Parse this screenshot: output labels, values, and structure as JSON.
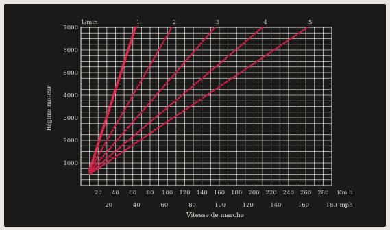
{
  "chart_data": {
    "type": "line",
    "title": "",
    "ylabel": "Régime moteur",
    "ylabel_unit": "1/min",
    "xlabel": "Vitesse de marche",
    "x_unit_top": "Km h",
    "x_unit_bottom": "mph",
    "ylim": [
      0,
      7000
    ],
    "xlim_kmh": [
      0,
      290
    ],
    "y_ticks": [
      "1000",
      "2000",
      "3000",
      "4000",
      "5000",
      "6000",
      "7000"
    ],
    "x_ticks_kmh": [
      "20",
      "40",
      "60",
      "80",
      "100",
      "120",
      "140",
      "160",
      "180",
      "200",
      "220",
      "240",
      "260",
      "280"
    ],
    "x_ticks_mph": [
      "20",
      "40",
      "60",
      "80",
      "100",
      "120",
      "140",
      "160",
      "180"
    ],
    "series": [
      {
        "name": "1",
        "color": "#e0284a",
        "x": [
          10,
          63
        ],
        "y": [
          650,
          7000
        ]
      },
      {
        "name": "2",
        "color": "#c81e44",
        "x": [
          10,
          105
        ],
        "y": [
          650,
          7000
        ]
      },
      {
        "name": "3",
        "color": "#c81e44",
        "x": [
          10,
          155
        ],
        "y": [
          600,
          7000
        ]
      },
      {
        "name": "4",
        "color": "#c81e44",
        "x": [
          10,
          210
        ],
        "y": [
          550,
          7000
        ]
      },
      {
        "name": "5",
        "color": "#c81e44",
        "x": [
          10,
          262
        ],
        "y": [
          500,
          7000
        ]
      }
    ]
  }
}
